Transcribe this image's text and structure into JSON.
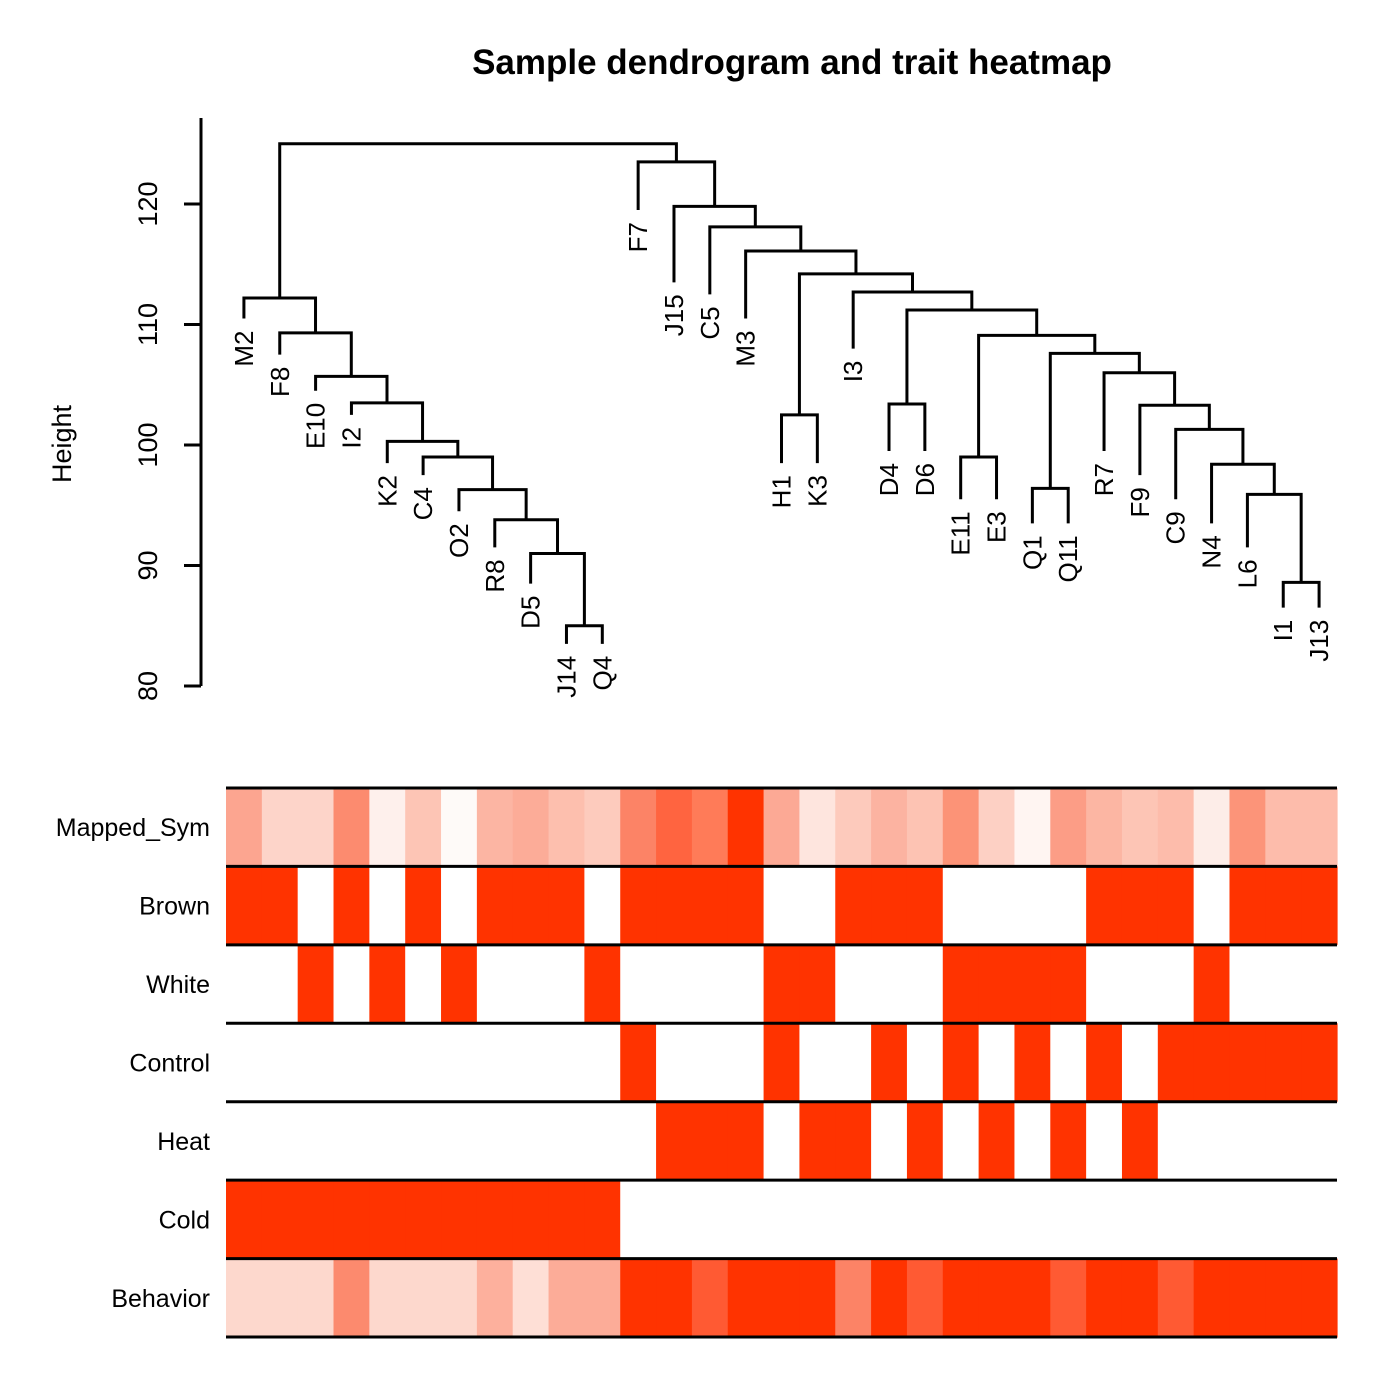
{
  "chart_data": {
    "type": "dendrogram+heatmap",
    "title": "Sample dendrogram and trait heatmap",
    "ylabel": "Height",
    "ylim": [
      80,
      127
    ],
    "yticks": [
      80,
      90,
      100,
      110,
      120
    ],
    "leaves": [
      "M2",
      "F8",
      "E10",
      "I2",
      "K2",
      "C4",
      "O2",
      "R8",
      "D5",
      "J14",
      "Q4",
      "F7",
      "J15",
      "C5",
      "M3",
      "H1",
      "K3",
      "I3",
      "D4",
      "D6",
      "E11",
      "E3",
      "Q1",
      "Q11",
      "R7",
      "F9",
      "C9",
      "N4",
      "L6",
      "I1",
      "J13"
    ],
    "leaf_label_heights": [
      110.5,
      107.5,
      104.5,
      102.5,
      98.5,
      97.5,
      94.5,
      91.5,
      88.5,
      83.5,
      83.5,
      119.5,
      113.5,
      112.5,
      110.5,
      98.5,
      98.5,
      108,
      99.5,
      99.5,
      95.5,
      95.5,
      93.5,
      93.5,
      99.5,
      97.5,
      95.5,
      93.5,
      91.5,
      86.5,
      86.5
    ],
    "merges": [
      {
        "a": "J14",
        "b": "Q4",
        "height": 85
      },
      {
        "a": "D5",
        "b": "J14+Q4",
        "height": 91
      },
      {
        "a": "R8",
        "b": "D5+J14+Q4",
        "height": 93.8
      },
      {
        "a": "O2",
        "b": "R8..Q4",
        "height": 96.3
      },
      {
        "a": "C4",
        "b": "O2..Q4",
        "height": 99
      },
      {
        "a": "K2",
        "b": "C4..Q4",
        "height": 100.3
      },
      {
        "a": "I2",
        "b": "K2..Q4",
        "height": 103.5
      },
      {
        "a": "E10",
        "b": "I2..Q4",
        "height": 105.7
      },
      {
        "a": "F8",
        "b": "E10..Q4",
        "height": 109.3
      },
      {
        "a": "M2",
        "b": "F8..Q4",
        "height": 112.2
      },
      {
        "a": "I1",
        "b": "J13",
        "height": 88.6
      },
      {
        "a": "L6",
        "b": "I1+J13",
        "height": 95.9
      },
      {
        "a": "N4",
        "b": "L6+I1+J13",
        "height": 98.4
      },
      {
        "a": "C9",
        "b": "N4..J13",
        "height": 101.3
      },
      {
        "a": "F9",
        "b": "C9..J13",
        "height": 103.3
      },
      {
        "a": "R7",
        "b": "F9..J13",
        "height": 106
      },
      {
        "a": "Q1",
        "b": "Q11",
        "height": 96.4
      },
      {
        "a": "Q1+Q11",
        "b": "R7..J13",
        "height": 107.6
      },
      {
        "a": "E11",
        "b": "E3",
        "height": 99
      },
      {
        "a": "E11+E3",
        "b": "Q1..J13",
        "height": 109.1
      },
      {
        "a": "D4",
        "b": "D6",
        "height": 103.4
      },
      {
        "a": "D4+D6",
        "b": "E11..J13",
        "height": 111.2
      },
      {
        "a": "I3",
        "b": "D4..J13",
        "height": 112.7
      },
      {
        "a": "H1",
        "b": "K3",
        "height": 102.5
      },
      {
        "a": "H1+K3",
        "b": "I3..J13",
        "height": 114.2
      },
      {
        "a": "M3",
        "b": "H1..J13",
        "height": 116.1
      },
      {
        "a": "C5",
        "b": "M3..J13",
        "height": 118.1
      },
      {
        "a": "J15",
        "b": "C5..J13",
        "height": 119.8
      },
      {
        "a": "F7",
        "b": "J15..J13",
        "height": 123.5
      },
      {
        "a": "M2..Q4",
        "b": "F7..J13",
        "height": 125
      }
    ],
    "heatmap": {
      "traits": [
        "Mapped_Sym",
        "Brown",
        "White",
        "Control",
        "Heat",
        "Cold",
        "Behavior"
      ],
      "cell_colors": [
        [
          "#fca590",
          "#fdd4c9",
          "#fdd4c9",
          "#fc8b6f",
          "#fef0ec",
          "#fdc5b5",
          "#fefaf8",
          "#fcb5a3",
          "#fcac98",
          "#fdbfae",
          "#fdcbbd",
          "#fc8366",
          "#ff6440",
          "#ff7b58",
          "#ff3300",
          "#fca995",
          "#fee5de",
          "#fdcabc",
          "#fcb3a1",
          "#fdc3b3",
          "#fc9377",
          "#fdd0c4",
          "#fff5f2",
          "#fc9d86",
          "#fcb6a3",
          "#fdc5b5",
          "#fdbcab",
          "#fdede8",
          "#fc9479",
          "#fdbcab",
          "#fdbcab"
        ],
        [
          "#ff3300",
          "#ff3300",
          "#ffffff",
          "#ff3300",
          "#ffffff",
          "#ff3300",
          "#ffffff",
          "#ff3300",
          "#ff3300",
          "#ff3300",
          "#ffffff",
          "#ff3300",
          "#ff3300",
          "#ff3300",
          "#ff3300",
          "#ffffff",
          "#ffffff",
          "#ff3300",
          "#ff3300",
          "#ff3300",
          "#ffffff",
          "#ffffff",
          "#ffffff",
          "#ffffff",
          "#ff3300",
          "#ff3300",
          "#ff3300",
          "#ffffff",
          "#ff3300",
          "#ff3300",
          "#ff3300"
        ],
        [
          "#ffffff",
          "#ffffff",
          "#ff3300",
          "#ffffff",
          "#ff3300",
          "#ffffff",
          "#ff3300",
          "#ffffff",
          "#ffffff",
          "#ffffff",
          "#ff3300",
          "#ffffff",
          "#ffffff",
          "#ffffff",
          "#ffffff",
          "#ff3300",
          "#ff3300",
          "#ffffff",
          "#ffffff",
          "#ffffff",
          "#ff3300",
          "#ff3300",
          "#ff3300",
          "#ff3300",
          "#ffffff",
          "#ffffff",
          "#ffffff",
          "#ff3300",
          "#ffffff",
          "#ffffff",
          "#ffffff"
        ],
        [
          "#ffffff",
          "#ffffff",
          "#ffffff",
          "#ffffff",
          "#ffffff",
          "#ffffff",
          "#ffffff",
          "#ffffff",
          "#ffffff",
          "#ffffff",
          "#ffffff",
          "#ff3300",
          "#ffffff",
          "#ffffff",
          "#ffffff",
          "#ff3300",
          "#ffffff",
          "#ffffff",
          "#ff3300",
          "#ffffff",
          "#ff3300",
          "#ffffff",
          "#ff3300",
          "#ffffff",
          "#ff3300",
          "#ffffff",
          "#ff3300",
          "#ff3300",
          "#ff3300",
          "#ff3300",
          "#ff3300"
        ],
        [
          "#ffffff",
          "#ffffff",
          "#ffffff",
          "#ffffff",
          "#ffffff",
          "#ffffff",
          "#ffffff",
          "#ffffff",
          "#ffffff",
          "#ffffff",
          "#ffffff",
          "#ffffff",
          "#ff3300",
          "#ff3300",
          "#ff3300",
          "#ffffff",
          "#ff3300",
          "#ff3300",
          "#ffffff",
          "#ff3300",
          "#ffffff",
          "#ff3300",
          "#ffffff",
          "#ff3300",
          "#ffffff",
          "#ff3300",
          "#ffffff",
          "#ffffff",
          "#ffffff",
          "#ffffff",
          "#ffffff"
        ],
        [
          "#ff3300",
          "#ff3300",
          "#ff3300",
          "#ff3300",
          "#ff3300",
          "#ff3300",
          "#ff3300",
          "#ff3300",
          "#ff3300",
          "#ff3300",
          "#ff3300",
          "#ffffff",
          "#ffffff",
          "#ffffff",
          "#ffffff",
          "#ffffff",
          "#ffffff",
          "#ffffff",
          "#ffffff",
          "#ffffff",
          "#ffffff",
          "#ffffff",
          "#ffffff",
          "#ffffff",
          "#ffffff",
          "#ffffff",
          "#ffffff",
          "#ffffff",
          "#ffffff",
          "#ffffff",
          "#ffffff"
        ],
        [
          "#fdd8cd",
          "#fdd8cd",
          "#fdd8cd",
          "#fc8a6e",
          "#fdd8cd",
          "#fdd8cd",
          "#fdd8cd",
          "#fdb09d",
          "#fedfd6",
          "#fcac98",
          "#fcac98",
          "#ff3300",
          "#ff3300",
          "#ff5a33",
          "#ff3300",
          "#ff3300",
          "#ff3300",
          "#fc8366",
          "#ff3300",
          "#ff5a33",
          "#ff3300",
          "#ff3300",
          "#ff3300",
          "#ff5a33",
          "#ff3300",
          "#ff3300",
          "#ff5a33",
          "#ff3300",
          "#ff3300",
          "#ff3300",
          "#ff3300"
        ]
      ]
    }
  }
}
